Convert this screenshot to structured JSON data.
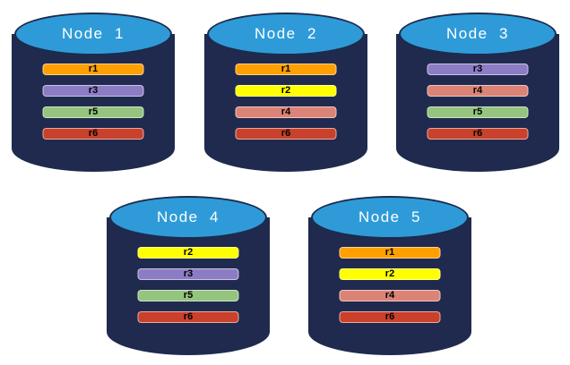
{
  "palette": {
    "cylinder_body": "#1F2A4E",
    "cylinder_top": "#2E9BD8",
    "cylinder_outline": "#1C2B4D",
    "title_text": "#FFFFFF",
    "bar_text": "#000000",
    "r1": "#FFA000",
    "r2": "#FFFF00",
    "r3": "#8B7CC4",
    "r4": "#DB8376",
    "r5": "#94C47E",
    "r6": "#C9412B"
  },
  "nodes": [
    {
      "title": "Node  1",
      "bars": [
        {
          "label": "r1",
          "color": "#FFA000"
        },
        {
          "label": "r3",
          "color": "#8B7CC4"
        },
        {
          "label": "r5",
          "color": "#94C47E"
        },
        {
          "label": "r6",
          "color": "#C9412B"
        }
      ]
    },
    {
      "title": "Node  2",
      "bars": [
        {
          "label": "r1",
          "color": "#FFA000"
        },
        {
          "label": "r2",
          "color": "#FFFF00"
        },
        {
          "label": "r4",
          "color": "#DB8376"
        },
        {
          "label": "r6",
          "color": "#C9412B"
        }
      ]
    },
    {
      "title": "Node  3",
      "bars": [
        {
          "label": "r3",
          "color": "#8B7CC4"
        },
        {
          "label": "r4",
          "color": "#DB8376"
        },
        {
          "label": "r5",
          "color": "#94C47E"
        },
        {
          "label": "r6",
          "color": "#C9412B"
        }
      ]
    },
    {
      "title": "Node  4",
      "bars": [
        {
          "label": "r2",
          "color": "#FFFF00"
        },
        {
          "label": "r3",
          "color": "#8B7CC4"
        },
        {
          "label": "r5",
          "color": "#94C47E"
        },
        {
          "label": "r6",
          "color": "#C9412B"
        }
      ]
    },
    {
      "title": "Node  5",
      "bars": [
        {
          "label": "r1",
          "color": "#FFA000"
        },
        {
          "label": "r2",
          "color": "#FFFF00"
        },
        {
          "label": "r4",
          "color": "#DB8376"
        },
        {
          "label": "r6",
          "color": "#C9412B"
        }
      ]
    }
  ]
}
